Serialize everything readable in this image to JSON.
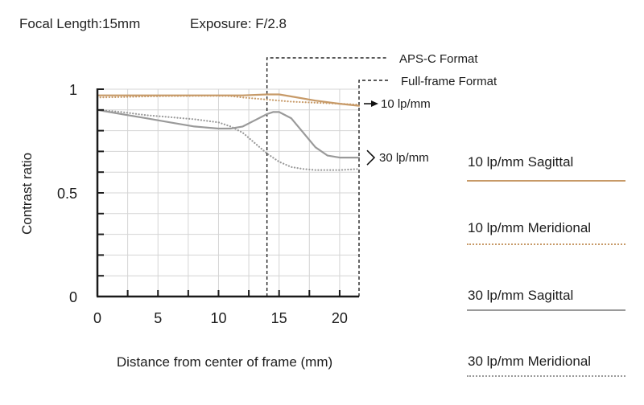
{
  "header": {
    "focal_length": "Focal Length:15mm",
    "exposure": "Exposure: F/2.8"
  },
  "colors": {
    "sagittal_10": "#c79a68",
    "meridional_10": "#c79a68",
    "sagittal_30": "#9a9a9a",
    "meridional_30": "#9a9a9a",
    "grid": "#d4d4d4",
    "axis": "#1a1a1a"
  },
  "chart_data": {
    "type": "line",
    "title": "",
    "xlabel": "Distance from center of frame (mm)",
    "ylabel": "Contrast ratio",
    "xlim": [
      0,
      21.6
    ],
    "ylim": [
      0,
      1
    ],
    "x_ticks": [
      {
        "value": 0,
        "label": "0"
      },
      {
        "value": 5,
        "label": "5"
      },
      {
        "value": 10,
        "label": "10"
      },
      {
        "value": 15,
        "label": "15"
      },
      {
        "value": 20,
        "label": "20"
      }
    ],
    "y_ticks": [
      {
        "value": 0,
        "label": "0"
      },
      {
        "value": 0.5,
        "label": "0.5"
      },
      {
        "value": 1,
        "label": "1"
      }
    ],
    "grid": true,
    "series": [
      {
        "name": "10 lp/mm Sagittal",
        "style": "solid",
        "color": "#c79a68",
        "x": [
          0,
          2,
          4,
          6,
          8,
          10,
          12,
          14,
          15,
          16,
          18,
          20,
          21.6
        ],
        "y": [
          0.97,
          0.97,
          0.97,
          0.97,
          0.97,
          0.97,
          0.97,
          0.975,
          0.975,
          0.965,
          0.945,
          0.93,
          0.92
        ]
      },
      {
        "name": "10 lp/mm Meridional",
        "style": "dotted",
        "color": "#c79a68",
        "x": [
          0,
          2,
          4,
          6,
          8,
          10,
          11,
          12,
          13,
          14,
          15,
          16,
          18,
          20,
          21.6
        ],
        "y": [
          0.96,
          0.962,
          0.965,
          0.967,
          0.968,
          0.968,
          0.967,
          0.96,
          0.955,
          0.95,
          0.945,
          0.94,
          0.935,
          0.93,
          0.925
        ]
      },
      {
        "name": "30 lp/mm Sagittal",
        "style": "solid",
        "color": "#9a9a9a",
        "x": [
          0,
          2,
          4,
          6,
          8,
          10,
          11,
          12,
          13,
          14,
          14.5,
          15,
          16,
          17,
          18,
          19,
          20,
          21,
          21.6
        ],
        "y": [
          0.9,
          0.88,
          0.86,
          0.84,
          0.82,
          0.81,
          0.81,
          0.82,
          0.85,
          0.88,
          0.89,
          0.89,
          0.86,
          0.79,
          0.72,
          0.68,
          0.67,
          0.67,
          0.67
        ]
      },
      {
        "name": "30 lp/mm Meridional",
        "style": "dotted",
        "color": "#9a9a9a",
        "x": [
          0,
          2,
          4,
          6,
          8,
          10,
          11,
          12,
          13,
          14,
          15,
          16,
          17,
          18,
          20,
          21.6
        ],
        "y": [
          0.9,
          0.89,
          0.875,
          0.865,
          0.855,
          0.84,
          0.82,
          0.79,
          0.74,
          0.69,
          0.65,
          0.625,
          0.615,
          0.61,
          0.61,
          0.615
        ]
      }
    ],
    "format_lines": [
      {
        "label": "APS-C Format",
        "x": 14
      },
      {
        "label": "Full-frame Format",
        "x": 21.6
      }
    ],
    "curve_annotations": [
      {
        "label": "10 lp/mm",
        "marker": "arrow",
        "y": 0.93
      },
      {
        "label": "30 lp/mm",
        "marker": "bracket",
        "y": 0.67
      }
    ],
    "legend": {
      "placement": "right",
      "entries": [
        {
          "label": "10 lp/mm Sagittal",
          "style": "solid",
          "color": "#c79a68"
        },
        {
          "label": "10 lp/mm Meridional",
          "style": "dotted",
          "color": "#c79a68"
        },
        {
          "label": "30 lp/mm Sagittal",
          "style": "solid",
          "color": "#9a9a9a"
        },
        {
          "label": "30 lp/mm Meridional",
          "style": "dotted",
          "color": "#9a9a9a"
        }
      ]
    }
  }
}
